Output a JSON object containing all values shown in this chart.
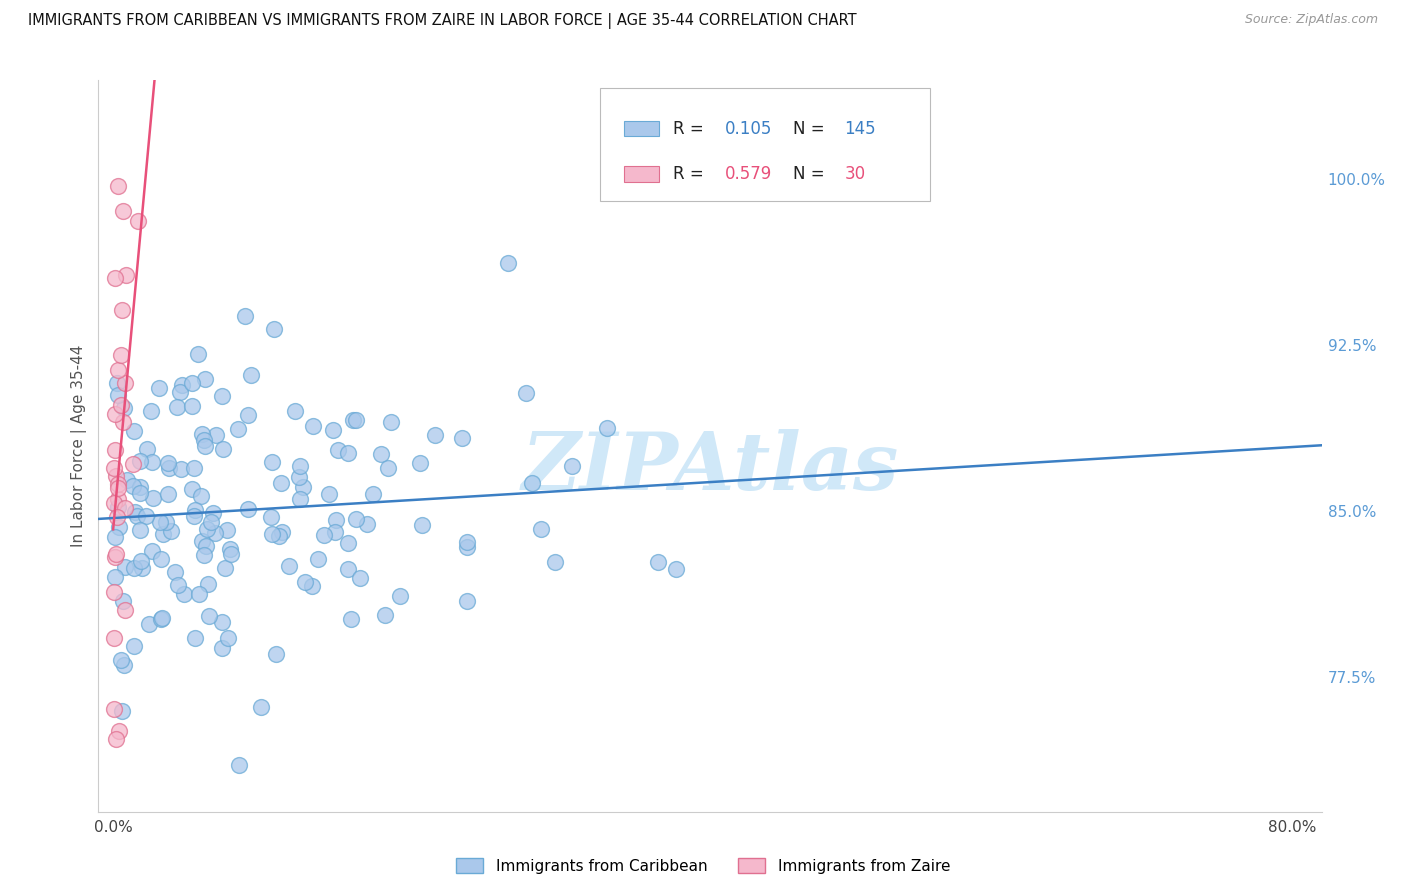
{
  "title": "IMMIGRANTS FROM CARIBBEAN VS IMMIGRANTS FROM ZAIRE IN LABOR FORCE | AGE 35-44 CORRELATION CHART",
  "source": "Source: ZipAtlas.com",
  "ylabel": "In Labor Force | Age 35-44",
  "background_color": "#ffffff",
  "grid_color": "#dddddd",
  "caribbean_color": "#aac8eb",
  "caribbean_edge_color": "#6aaad6",
  "zaire_color": "#f5b8cc",
  "zaire_edge_color": "#e07090",
  "trend_caribbean_color": "#3b7fc4",
  "trend_zaire_color": "#e8507a",
  "watermark": "ZIPAtlas",
  "watermark_color": "#d0e8f8",
  "legend_R_caribbean": "0.105",
  "legend_N_caribbean": "145",
  "legend_R_zaire": "0.579",
  "legend_N_zaire": "30",
  "legend_color_caribbean": "#3b7fc4",
  "legend_color_zaire": "#e8507a",
  "ytick_positions": [
    0.775,
    0.85,
    0.925,
    1.0
  ],
  "ytick_labels": [
    "77.5%",
    "85.0%",
    "92.5%",
    "100.0%"
  ],
  "ytick_color": "#5b9bd5",
  "xtick_labels": [
    "0.0%",
    "",
    "",
    "",
    "",
    "",
    "",
    "",
    "80.0%"
  ],
  "xlim": [
    -0.01,
    0.82
  ],
  "ylim": [
    0.715,
    1.045
  ]
}
